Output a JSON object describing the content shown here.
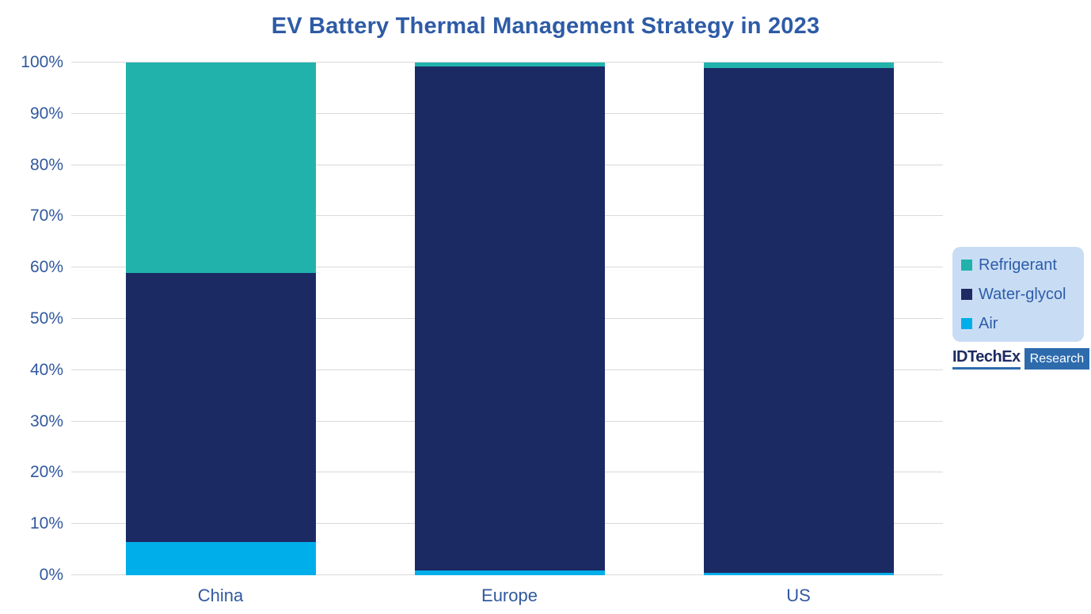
{
  "chart_data": {
    "type": "bar",
    "variant": "stacked-percent",
    "title": "EV Battery Thermal Management Strategy in 2023",
    "categories": [
      "China",
      "Europe",
      "US"
    ],
    "series": [
      {
        "name": "Air",
        "color": "#00aeea",
        "values": [
          6.5,
          1.0,
          0.5
        ]
      },
      {
        "name": "Water-glycol",
        "color": "#1c2a64",
        "values": [
          52.5,
          98.2,
          98.5
        ]
      },
      {
        "name": "Refrigerant",
        "color": "#20b2ab",
        "values": [
          41.0,
          0.8,
          1.0
        ]
      }
    ],
    "xlabel": "",
    "ylabel": "",
    "ylim": [
      0,
      100
    ],
    "ytick_step": 10,
    "ytick_labels": [
      "0%",
      "10%",
      "20%",
      "30%",
      "40%",
      "50%",
      "60%",
      "70%",
      "80%",
      "90%",
      "100%"
    ],
    "grid": true,
    "legend_position": "right"
  },
  "legend": {
    "items": [
      {
        "label": "Refrigerant",
        "color": "#20b2ab"
      },
      {
        "label": "Water-glycol",
        "color": "#1d2a63"
      },
      {
        "label": "Air",
        "color": "#00aeea"
      }
    ]
  },
  "brand": {
    "name": "IDTechEx",
    "suffix": "Research"
  },
  "colors": {
    "title_text": "#2e5ba6",
    "axis_text": "#31599e",
    "gridline": "#d9d9d9",
    "legend_bg": "#c8ddf4",
    "legend_text": "#2e5ca8",
    "brand_blue": "#2d6bad",
    "brand_navy": "#1d2a63"
  }
}
